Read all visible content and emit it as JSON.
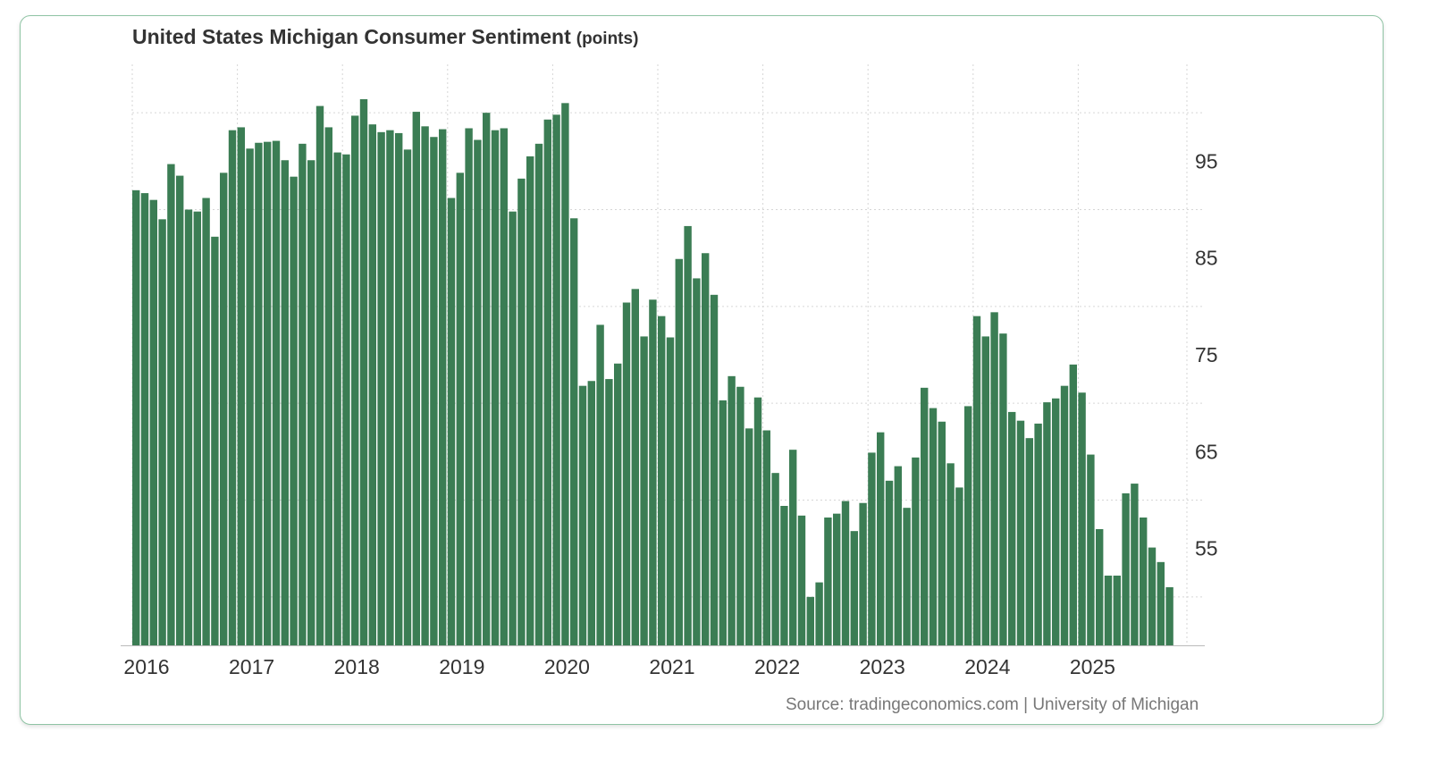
{
  "chart_data": {
    "type": "bar",
    "title": "United States Michigan Consumer Sentiment",
    "unit": "(points)",
    "source": "Source: tradingeconomics.com | University of Michigan",
    "color": "#3b7d54",
    "ylim": [
      45,
      105
    ],
    "yticks": [
      95,
      85,
      75,
      65,
      55
    ],
    "xtick_labels": [
      "2016",
      "2017",
      "2018",
      "2019",
      "2020",
      "2021",
      "2022",
      "2023",
      "2024",
      "2025"
    ],
    "start": "2016-01",
    "grid": true,
    "x": [
      "2016-01",
      "2016-02",
      "2016-03",
      "2016-04",
      "2016-05",
      "2016-06",
      "2016-07",
      "2016-08",
      "2016-09",
      "2016-10",
      "2016-11",
      "2016-12",
      "2017-01",
      "2017-02",
      "2017-03",
      "2017-04",
      "2017-05",
      "2017-06",
      "2017-07",
      "2017-08",
      "2017-09",
      "2017-10",
      "2017-11",
      "2017-12",
      "2018-01",
      "2018-02",
      "2018-03",
      "2018-04",
      "2018-05",
      "2018-06",
      "2018-07",
      "2018-08",
      "2018-09",
      "2018-10",
      "2018-11",
      "2018-12",
      "2019-01",
      "2019-02",
      "2019-03",
      "2019-04",
      "2019-05",
      "2019-06",
      "2019-07",
      "2019-08",
      "2019-09",
      "2019-10",
      "2019-11",
      "2019-12",
      "2020-01",
      "2020-02",
      "2020-03",
      "2020-04",
      "2020-05",
      "2020-06",
      "2020-07",
      "2020-08",
      "2020-09",
      "2020-10",
      "2020-11",
      "2020-12",
      "2021-01",
      "2021-02",
      "2021-03",
      "2021-04",
      "2021-05",
      "2021-06",
      "2021-07",
      "2021-08",
      "2021-09",
      "2021-10",
      "2021-11",
      "2021-12",
      "2022-01",
      "2022-02",
      "2022-03",
      "2022-04",
      "2022-05",
      "2022-06",
      "2022-07",
      "2022-08",
      "2022-09",
      "2022-10",
      "2022-11",
      "2022-12",
      "2023-01",
      "2023-02",
      "2023-03",
      "2023-04",
      "2023-05",
      "2023-06",
      "2023-07",
      "2023-08",
      "2023-09",
      "2023-10",
      "2023-11",
      "2023-12",
      "2024-01",
      "2024-02",
      "2024-03",
      "2024-04",
      "2024-05",
      "2024-06",
      "2024-07",
      "2024-08",
      "2024-09",
      "2024-10",
      "2024-11",
      "2024-12",
      "2025-01",
      "2025-02",
      "2025-03",
      "2025-04",
      "2025-05",
      "2025-06",
      "2025-07",
      "2025-08",
      "2025-09",
      "2025-10",
      "2025-11"
    ],
    "values": [
      92.0,
      91.7,
      91.0,
      89.0,
      94.7,
      93.5,
      90.0,
      89.8,
      91.2,
      87.2,
      93.8,
      98.2,
      98.5,
      96.3,
      96.9,
      97.0,
      97.1,
      95.1,
      93.4,
      96.8,
      95.1,
      100.7,
      98.5,
      95.9,
      95.7,
      99.7,
      101.4,
      98.8,
      98.0,
      98.2,
      97.9,
      96.2,
      100.1,
      98.6,
      97.5,
      98.3,
      91.2,
      93.8,
      98.4,
      97.2,
      100.0,
      98.2,
      98.4,
      89.8,
      93.2,
      95.5,
      96.8,
      99.3,
      99.8,
      101.0,
      89.1,
      71.8,
      72.3,
      78.1,
      72.5,
      74.1,
      80.4,
      81.8,
      76.9,
      80.7,
      79.0,
      76.8,
      84.9,
      88.3,
      82.9,
      85.5,
      81.2,
      70.3,
      72.8,
      71.7,
      67.4,
      70.6,
      67.2,
      62.8,
      59.4,
      65.2,
      58.4,
      50.0,
      51.5,
      58.2,
      58.6,
      59.9,
      56.8,
      59.7,
      64.9,
      67.0,
      62.0,
      63.5,
      59.2,
      64.4,
      71.6,
      69.5,
      68.1,
      63.8,
      61.3,
      69.7,
      79.0,
      76.9,
      79.4,
      77.2,
      69.1,
      68.2,
      66.4,
      67.9,
      70.1,
      70.5,
      71.8,
      74.0,
      71.1,
      64.7,
      57.0,
      52.2,
      52.2,
      60.7,
      61.7,
      58.2,
      55.1,
      53.6,
      51.0
    ]
  }
}
